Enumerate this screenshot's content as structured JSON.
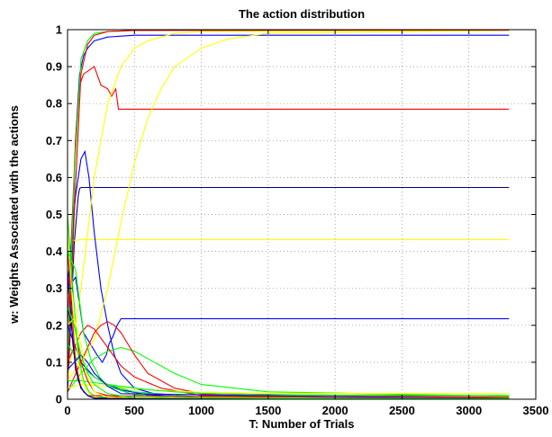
{
  "chart_data": {
    "type": "line",
    "title": "The action distribution",
    "xlabel": "T: Number of Trials",
    "ylabel": "w: Weights Associated with the actions",
    "xlim": [
      0,
      3500
    ],
    "ylim": [
      0,
      1
    ],
    "xticks": [
      "0",
      "500",
      "1000",
      "1500",
      "2000",
      "2500",
      "3000",
      "3500"
    ],
    "yticks": [
      "0",
      "0.1",
      "0.2",
      "0.3",
      "0.4",
      "0.5",
      "0.6",
      "0.7",
      "0.8",
      "0.9",
      "1"
    ],
    "grid": true,
    "colors": {
      "blue": "#0000ff",
      "red": "#ff0000",
      "green": "#00ff00",
      "yellow": "#ffff00",
      "navy": "#000080"
    },
    "series": [
      {
        "color": "#0000ff",
        "x": [
          0,
          30,
          60,
          90,
          120,
          150,
          200,
          300,
          500,
          800,
          3300
        ],
        "y": [
          0.12,
          0.35,
          0.7,
          0.88,
          0.93,
          0.95,
          0.97,
          0.98,
          0.985,
          0.985,
          0.985
        ]
      },
      {
        "color": "#ff0000",
        "x": [
          0,
          30,
          60,
          90,
          120,
          160,
          200,
          250,
          300,
          330,
          360,
          380,
          3300
        ],
        "y": [
          0.2,
          0.45,
          0.7,
          0.85,
          0.88,
          0.89,
          0.9,
          0.85,
          0.84,
          0.82,
          0.84,
          0.785,
          0.785
        ]
      },
      {
        "color": "#000080",
        "x": [
          0,
          20,
          50,
          80,
          90,
          100,
          3300
        ],
        "y": [
          0.02,
          0.18,
          0.42,
          0.55,
          0.57,
          0.573,
          0.573
        ]
      },
      {
        "color": "#ffff00",
        "x": [
          0,
          30,
          60,
          100,
          3300
        ],
        "y": [
          0.3,
          0.43,
          0.43,
          0.432,
          0.432
        ]
      },
      {
        "color": "#0000ff",
        "x": [
          0,
          60,
          120,
          170,
          220,
          260,
          290,
          310,
          340,
          370,
          400,
          3300
        ],
        "y": [
          0.3,
          0.33,
          0.18,
          0.15,
          0.12,
          0.1,
          0.12,
          0.15,
          0.17,
          0.2,
          0.218,
          0.218
        ]
      },
      {
        "color": "#0000ff",
        "x": [
          0,
          60,
          100,
          130,
          160,
          200,
          250,
          300,
          350,
          400,
          500,
          700,
          1000,
          3300
        ],
        "y": [
          0.3,
          0.55,
          0.65,
          0.67,
          0.6,
          0.45,
          0.3,
          0.2,
          0.12,
          0.07,
          0.03,
          0.01,
          0.005,
          0.003
        ]
      },
      {
        "color": "#ffff00",
        "x": [
          0,
          100,
          200,
          300,
          400,
          500,
          600,
          700,
          800,
          1000,
          1200,
          1500,
          3300
        ],
        "y": [
          0.05,
          0.1,
          0.16,
          0.3,
          0.48,
          0.64,
          0.76,
          0.84,
          0.9,
          0.95,
          0.975,
          0.99,
          0.998
        ]
      },
      {
        "color": "#ffff00",
        "x": [
          0,
          100,
          200,
          300,
          400,
          500,
          600,
          800,
          1000,
          3300
        ],
        "y": [
          0.05,
          0.3,
          0.6,
          0.8,
          0.9,
          0.95,
          0.97,
          0.99,
          0.995,
          0.999
        ]
      },
      {
        "color": "#00ff00",
        "x": [
          0,
          50,
          100,
          150,
          200,
          300,
          500,
          3300
        ],
        "y": [
          0.1,
          0.6,
          0.92,
          0.97,
          0.99,
          0.995,
          0.998,
          0.999
        ]
      },
      {
        "color": "#ff0000",
        "x": [
          0,
          50,
          100,
          150,
          200,
          300,
          500,
          3300
        ],
        "y": [
          0.05,
          0.5,
          0.88,
          0.96,
          0.985,
          0.995,
          0.998,
          0.999
        ]
      },
      {
        "color": "#00ff00",
        "x": [
          0,
          100,
          200,
          300,
          400,
          500,
          600,
          800,
          1000,
          1500,
          3300
        ],
        "y": [
          0.02,
          0.07,
          0.11,
          0.13,
          0.14,
          0.13,
          0.11,
          0.07,
          0.04,
          0.02,
          0.008
        ]
      },
      {
        "color": "#ff0000",
        "x": [
          0,
          100,
          200,
          250,
          300,
          350,
          400,
          450,
          500,
          600,
          800,
          1000,
          3300
        ],
        "y": [
          0.02,
          0.1,
          0.18,
          0.2,
          0.21,
          0.2,
          0.18,
          0.15,
          0.12,
          0.07,
          0.03,
          0.015,
          0.005
        ]
      },
      {
        "color": "#ff0000",
        "x": [
          0,
          100,
          150,
          200,
          300,
          400,
          500,
          700,
          1000,
          3300
        ],
        "y": [
          0.1,
          0.18,
          0.2,
          0.19,
          0.14,
          0.09,
          0.06,
          0.03,
          0.01,
          0.003
        ]
      },
      {
        "color": "#ffff00",
        "x": [
          0,
          100,
          200,
          400,
          600,
          800,
          1000,
          1500,
          3300
        ],
        "y": [
          0.03,
          0.04,
          0.038,
          0.032,
          0.026,
          0.022,
          0.019,
          0.016,
          0.015
        ]
      },
      {
        "color": "#00ff00",
        "x": [
          0,
          100,
          200,
          400,
          600,
          800,
          1000,
          1500,
          3300
        ],
        "y": [
          0.05,
          0.05,
          0.045,
          0.035,
          0.026,
          0.02,
          0.016,
          0.012,
          0.01
        ]
      },
      {
        "color": "#0000ff",
        "x": [
          0,
          50,
          100,
          200,
          300,
          400,
          600,
          1000,
          3300
        ],
        "y": [
          0.2,
          0.15,
          0.1,
          0.06,
          0.04,
          0.025,
          0.012,
          0.005,
          0.002
        ]
      },
      {
        "color": "#00ff00",
        "x": [
          0,
          50,
          100,
          200,
          300,
          500,
          1000,
          3300
        ],
        "y": [
          0.15,
          0.12,
          0.09,
          0.06,
          0.04,
          0.02,
          0.006,
          0.002
        ]
      },
      {
        "color": "#ff0000",
        "x": [
          0,
          50,
          100,
          150,
          200,
          300,
          500,
          3300
        ],
        "y": [
          0.4,
          0.2,
          0.1,
          0.05,
          0.02,
          0.01,
          0.002,
          0.001
        ]
      },
      {
        "color": "#00ff00",
        "x": [
          0,
          40,
          80,
          120,
          160,
          200,
          300,
          3300
        ],
        "y": [
          0.5,
          0.3,
          0.12,
          0.05,
          0.02,
          0.01,
          0.003,
          0.001
        ]
      },
      {
        "color": "#ffff00",
        "x": [
          0,
          40,
          80,
          120,
          160,
          200,
          300,
          3300
        ],
        "y": [
          0.45,
          0.25,
          0.1,
          0.04,
          0.015,
          0.006,
          0.002,
          0.001
        ]
      },
      {
        "color": "#0000ff",
        "x": [
          0,
          40,
          80,
          120,
          160,
          200,
          3300
        ],
        "y": [
          0.35,
          0.15,
          0.05,
          0.02,
          0.008,
          0.003,
          0.001
        ]
      },
      {
        "color": "#00ff00",
        "x": [
          0,
          60,
          120,
          180,
          240,
          300,
          500,
          800,
          3300
        ],
        "y": [
          0.4,
          0.35,
          0.18,
          0.1,
          0.06,
          0.035,
          0.012,
          0.004,
          0.001
        ]
      },
      {
        "color": "#ff0000",
        "x": [
          0,
          30,
          60,
          100,
          150,
          3300
        ],
        "y": [
          0.3,
          0.25,
          0.1,
          0.03,
          0.01,
          0.001
        ]
      },
      {
        "color": "#000080",
        "x": [
          0,
          30,
          60,
          100,
          150,
          200,
          3300
        ],
        "y": [
          0.25,
          0.2,
          0.08,
          0.03,
          0.01,
          0.003,
          0.001
        ]
      },
      {
        "color": "#0000ff",
        "x": [
          0,
          50,
          100,
          150,
          200,
          300,
          400,
          3300
        ],
        "y": [
          0.08,
          0.1,
          0.12,
          0.1,
          0.07,
          0.035,
          0.015,
          0.001
        ]
      },
      {
        "color": "#ffff00",
        "x": [
          0,
          50,
          100,
          150,
          200,
          300,
          3300
        ],
        "y": [
          0.2,
          0.22,
          0.15,
          0.06,
          0.02,
          0.005,
          0.001
        ]
      },
      {
        "color": "#00ff00",
        "x": [
          0,
          50,
          100,
          150,
          200,
          300,
          500,
          3300
        ],
        "y": [
          0.25,
          0.2,
          0.12,
          0.07,
          0.04,
          0.015,
          0.004,
          0.001
        ]
      }
    ]
  }
}
